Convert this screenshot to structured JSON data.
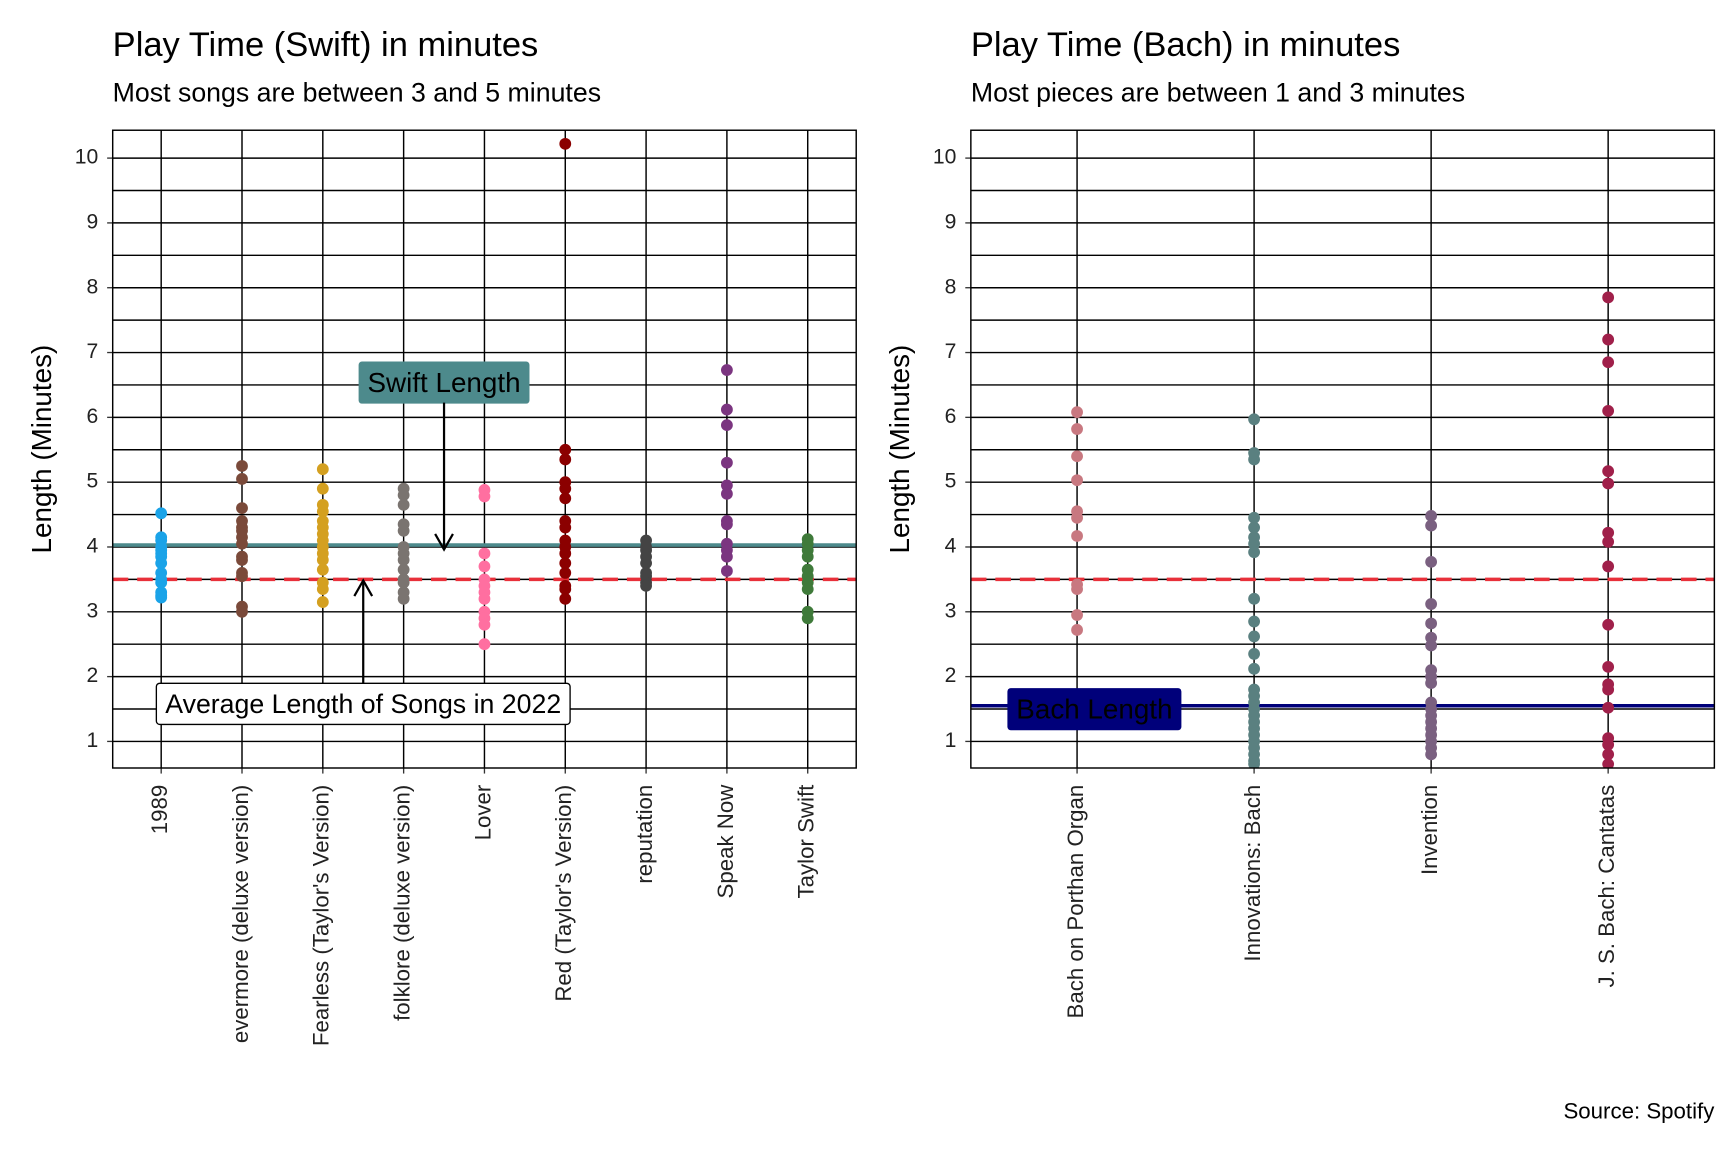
{
  "caption": "Source: Spotify",
  "chart_data": [
    {
      "type": "strip",
      "title": "Play Time (Swift) in minutes",
      "subtitle": "Most songs are between 3 and 5 minutes",
      "y_label": "Length (Minutes)",
      "categories": [
        "1989",
        "evermore (deluxe version)",
        "Fearless (Taylor's Version)",
        "folklore (deluxe version)",
        "Lover",
        "Red (Taylor's Version)",
        "reputation",
        "Speak Now",
        "Taylor Swift"
      ],
      "colors": [
        "#1aa3e8",
        "#7a4a3a",
        "#d4a020",
        "#7a7470",
        "#ff6fa0",
        "#8b0000",
        "#444444",
        "#7b3580",
        "#3f7a3a"
      ],
      "values": [
        [
          4.52,
          4.15,
          4.1,
          4.0,
          3.95,
          3.9,
          3.85,
          3.75,
          3.6,
          3.5,
          3.45,
          3.3,
          3.25,
          3.22
        ],
        [
          5.25,
          5.05,
          4.6,
          4.4,
          4.3,
          4.25,
          4.15,
          4.05,
          3.85,
          3.8,
          3.6,
          3.55,
          3.08,
          3.0
        ],
        [
          5.2,
          4.9,
          4.65,
          4.55,
          4.4,
          4.3,
          4.2,
          4.1,
          4.0,
          3.9,
          3.8,
          3.65,
          3.45,
          3.35,
          3.15
        ],
        [
          4.9,
          4.8,
          4.65,
          4.35,
          4.25,
          4.0,
          3.9,
          3.8,
          3.65,
          3.5,
          3.45,
          3.3,
          3.2
        ],
        [
          4.88,
          4.78,
          3.9,
          3.7,
          3.5,
          3.4,
          3.3,
          3.2,
          3.0,
          2.9,
          2.8,
          2.5
        ],
        [
          10.22,
          5.5,
          5.35,
          5.0,
          4.9,
          4.75,
          4.4,
          4.3,
          4.1,
          4.0,
          3.9,
          3.75,
          3.6,
          3.4,
          3.35,
          3.2
        ],
        [
          4.1,
          4.0,
          3.95,
          3.85,
          3.75,
          3.6,
          3.55,
          3.45,
          3.4
        ],
        [
          6.73,
          6.12,
          5.88,
          5.3,
          4.95,
          4.82,
          4.4,
          4.35,
          4.05,
          3.95,
          3.85,
          3.63
        ],
        [
          4.12,
          4.05,
          3.95,
          3.85,
          3.65,
          3.55,
          3.45,
          3.35,
          3.0,
          2.9
        ]
      ],
      "ylim": [
        0.59,
        10.43
      ],
      "yticks": [
        1,
        2,
        3,
        4,
        5,
        6,
        7,
        8,
        9,
        10
      ],
      "minor_yticks": [
        1.5,
        2.5,
        3.5,
        4.5,
        5.5,
        6.5,
        7.5,
        8.5,
        9.5,
        10.5
      ],
      "grid": true,
      "hlines": [
        {
          "value": 3.5,
          "color": "#e8303a",
          "style": "dashed",
          "annotation": "Average Length of Songs in 2022"
        },
        {
          "value": 4.03,
          "color": "#4d8a8c",
          "style": "solid",
          "label": "Swift Length"
        }
      ]
    },
    {
      "type": "strip",
      "title": "Play Time (Bach) in minutes",
      "subtitle": "Most pieces are between 1 and 3 minutes",
      "y_label": "Length (Minutes)",
      "categories": [
        "Bach on Porthan Organ",
        "Innovations: Bach",
        "Invention",
        "J. S. Bach: Cantatas"
      ],
      "colors": [
        "#c87880",
        "#5a8080",
        "#7a6080",
        "#a0204a"
      ],
      "values": [
        [
          6.08,
          5.82,
          5.4,
          5.03,
          4.55,
          4.45,
          4.17,
          3.42,
          3.35,
          2.95,
          2.72
        ],
        [
          5.97,
          5.45,
          5.35,
          4.45,
          4.3,
          4.15,
          4.05,
          3.92,
          3.2,
          2.85,
          2.62,
          2.35,
          2.12,
          1.8,
          1.7,
          1.6,
          1.5,
          1.4,
          1.3,
          1.2,
          1.1,
          1.0,
          0.9,
          0.8,
          0.7,
          0.65
        ],
        [
          4.48,
          4.33,
          3.77,
          3.12,
          2.82,
          2.6,
          2.48,
          2.1,
          2.0,
          1.9,
          1.6,
          1.5,
          1.4,
          1.3,
          1.2,
          1.1,
          1.0,
          0.9,
          0.8
        ],
        [
          7.85,
          7.2,
          6.85,
          6.1,
          5.17,
          4.98,
          4.22,
          4.08,
          3.7,
          2.8,
          2.15,
          1.88,
          1.8,
          1.52,
          1.05,
          0.95,
          0.8,
          0.65
        ]
      ],
      "ylim": [
        0.59,
        10.43
      ],
      "yticks": [
        1,
        2,
        3,
        4,
        5,
        6,
        7,
        8,
        9,
        10
      ],
      "minor_yticks": [
        1.5,
        2.5,
        3.5,
        4.5,
        5.5,
        6.5,
        7.5,
        8.5,
        9.5,
        10.5
      ],
      "grid": true,
      "hlines": [
        {
          "value": 3.5,
          "color": "#e8303a",
          "style": "dashed"
        },
        {
          "value": 1.55,
          "color": "#00007a",
          "style": "solid",
          "label": "Bach Length"
        }
      ]
    }
  ]
}
